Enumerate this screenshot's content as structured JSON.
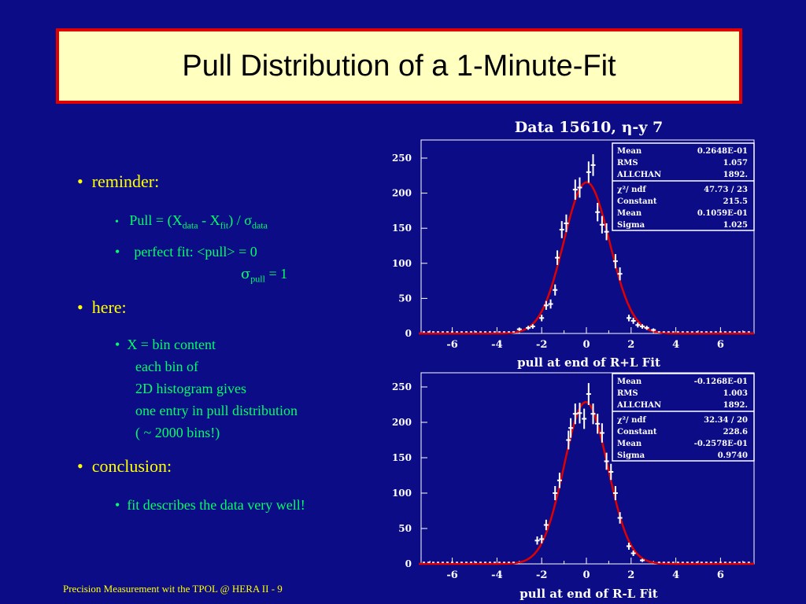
{
  "slide": {
    "title": "Pull Distribution of a 1-Minute-Fit",
    "footer": "Precision Measurement wit the TPOL  @ HERA II - 9",
    "bullet_char": "•",
    "reminder": "reminder:",
    "pull_label": "Pull  =  (X",
    "pull_sub1": "data",
    "pull_mid": " - X",
    "pull_sub2": "fit",
    "pull_mid2": ") / σ",
    "pull_sub3": "data",
    "perfect_fit": "perfect fit: <pull> = 0",
    "sigma_pull_sym": "σ",
    "sigma_pull_sub": "pull",
    "sigma_pull_val": " = 1",
    "here": "here:",
    "x_line1": "X = bin content",
    "x_line2": "each bin of",
    "x_line3": "2D histogram gives",
    "x_line4": "one entry in pull distribution",
    "x_line5": "( ~ 2000 bins!)",
    "conclusion": "conclusion:",
    "conclusion_text": "fit describes the data very well!"
  },
  "colors": {
    "background": "#0b0c86",
    "title_bg": "#ffffc0",
    "title_border": "#e00000",
    "bullet": "#ffff00",
    "sub": "#00ff66",
    "fit": "#e00000",
    "data": "#ffffff"
  },
  "chart_data": [
    {
      "type": "scatter",
      "title": "Data 15610, η-y 7",
      "xlabel": "pull at end of R+L Fit",
      "xlim": [
        -7.5,
        7.5
      ],
      "ylim": [
        0,
        260
      ],
      "xticks": [
        -6,
        -4,
        -2,
        0,
        2,
        4,
        6
      ],
      "yticks": [
        0,
        50,
        100,
        150,
        200,
        250
      ],
      "points": [
        [
          -3,
          6
        ],
        [
          -2.6,
          8
        ],
        [
          -2.4,
          10
        ],
        [
          -2,
          22
        ],
        [
          -1.8,
          40
        ],
        [
          -1.6,
          42
        ],
        [
          -1.4,
          62
        ],
        [
          -1.3,
          108
        ],
        [
          -1.1,
          148
        ],
        [
          -0.9,
          157
        ],
        [
          -0.5,
          205
        ],
        [
          -0.3,
          208
        ],
        [
          0.1,
          230
        ],
        [
          0.3,
          240
        ],
        [
          0.5,
          173
        ],
        [
          0.7,
          155
        ],
        [
          0.9,
          145
        ],
        [
          1.3,
          103
        ],
        [
          1.5,
          85
        ],
        [
          1.9,
          22
        ],
        [
          2.1,
          18
        ],
        [
          2.3,
          12
        ],
        [
          2.5,
          10
        ],
        [
          2.7,
          8
        ],
        [
          3.0,
          5
        ]
      ],
      "fit": {
        "constant": 215.5,
        "mean": 0.01059,
        "sigma": 1.025
      },
      "stats": [
        {
          "label": "Mean",
          "value": "0.2648E-01"
        },
        {
          "label": "RMS",
          "value": "1.057"
        },
        {
          "label": "ALLCHAN",
          "value": "1892."
        },
        {
          "label": "χ²/ ndf",
          "value": "47.73   /   23"
        },
        {
          "label": "Constant",
          "value": "215.5"
        },
        {
          "label": "Mean",
          "value": "0.1059E-01"
        },
        {
          "label": "Sigma",
          "value": "1.025"
        }
      ]
    },
    {
      "type": "scatter",
      "title": "",
      "xlabel": "pull at end of R-L Fit",
      "xlim": [
        -7.5,
        7.5
      ],
      "ylim": [
        0,
        260
      ],
      "xticks": [
        -6,
        -4,
        -2,
        0,
        2,
        4,
        6
      ],
      "yticks": [
        0,
        50,
        100,
        150,
        200,
        250
      ],
      "points": [
        [
          -2.2,
          33
        ],
        [
          -2,
          35
        ],
        [
          -1.8,
          55
        ],
        [
          -1.4,
          100
        ],
        [
          -1.2,
          118
        ],
        [
          -0.8,
          175
        ],
        [
          -0.7,
          192
        ],
        [
          -0.5,
          212
        ],
        [
          -0.3,
          213
        ],
        [
          -0.1,
          205
        ],
        [
          0.1,
          240
        ],
        [
          0.3,
          212
        ],
        [
          0.5,
          198
        ],
        [
          0.7,
          185
        ],
        [
          0.9,
          145
        ],
        [
          1.1,
          130
        ],
        [
          1.3,
          100
        ],
        [
          1.5,
          65
        ],
        [
          1.9,
          25
        ],
        [
          2.1,
          15
        ],
        [
          2.5,
          5
        ]
      ],
      "fit": {
        "constant": 228.6,
        "mean": -0.02578,
        "sigma": 0.974
      },
      "stats": [
        {
          "label": "Mean",
          "value": "-0.1268E-01"
        },
        {
          "label": "RMS",
          "value": "1.003"
        },
        {
          "label": "ALLCHAN",
          "value": "1892."
        },
        {
          "label": "χ²/ ndf",
          "value": "32.34   /   20"
        },
        {
          "label": "Constant",
          "value": "228.6"
        },
        {
          "label": "Mean",
          "value": "-0.2578E-01"
        },
        {
          "label": "Sigma",
          "value": "0.9740"
        }
      ]
    }
  ]
}
